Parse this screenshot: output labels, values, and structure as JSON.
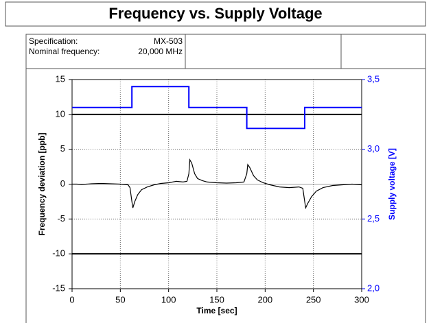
{
  "header": {
    "title": "Frequency vs. Supply Voltage",
    "specification": [
      [
        "Specification:",
        "MX-503"
      ],
      [
        "Nominal frequency:",
        "20,000 MHz"
      ]
    ]
  },
  "chart_data": {
    "type": "line",
    "xlabel": "Time [sec]",
    "ylabel": "Frequency deviation [ppb]",
    "y2label": "Supply voltage [V]",
    "xlim": [
      0,
      300
    ],
    "xticks": [
      0,
      50,
      100,
      150,
      200,
      250,
      300
    ],
    "ylim": [
      -15,
      15
    ],
    "yticks": [
      -15,
      -10,
      -5,
      0,
      5,
      10,
      15
    ],
    "y2lim": [
      2.0,
      3.5
    ],
    "y2ticks": [
      {
        "value": 2.0,
        "label": "2,0"
      },
      {
        "value": 2.5,
        "label": "2,5"
      },
      {
        "value": 3.0,
        "label": "3,0"
      },
      {
        "value": 3.5,
        "label": "3,5"
      }
    ],
    "grid": true,
    "limits": [
      10,
      -10
    ],
    "series": [
      {
        "color": "#000000",
        "x": [
          0,
          5,
          10,
          20,
          30,
          40,
          50,
          58,
          60,
          62,
          63,
          65,
          68,
          72,
          78,
          85,
          92,
          100,
          108,
          115,
          119,
          121,
          122,
          124,
          127,
          130,
          135,
          140,
          150,
          160,
          170,
          178,
          181,
          182,
          184,
          188,
          192,
          198,
          205,
          215,
          225,
          235,
          239,
          241,
          242,
          244,
          248,
          253,
          260,
          270,
          280,
          290,
          300
        ],
        "values": [
          0,
          0,
          -0.05,
          0.05,
          0.1,
          0.05,
          0,
          -0.1,
          -0.5,
          -2.5,
          -3.4,
          -2.5,
          -1.5,
          -0.8,
          -0.4,
          -0.1,
          0.1,
          0.2,
          0.4,
          0.3,
          0.4,
          1.5,
          3.5,
          3.0,
          1.5,
          0.8,
          0.5,
          0.3,
          0.2,
          0.15,
          0.2,
          0.3,
          1.5,
          2.8,
          2.4,
          1.2,
          0.6,
          0.2,
          -0.1,
          -0.4,
          -0.5,
          -0.4,
          -0.6,
          -2.5,
          -3.4,
          -2.8,
          -1.8,
          -1.0,
          -0.5,
          -0.2,
          -0.1,
          0,
          -0.1
        ]
      },
      {
        "color": "#0000ff",
        "axis": "y2",
        "x": [
          0,
          62,
          62,
          121,
          121,
          181,
          181,
          241,
          241,
          300
        ],
        "values": [
          3.3,
          3.3,
          3.45,
          3.45,
          3.3,
          3.3,
          3.15,
          3.15,
          3.3,
          3.3
        ]
      }
    ]
  }
}
